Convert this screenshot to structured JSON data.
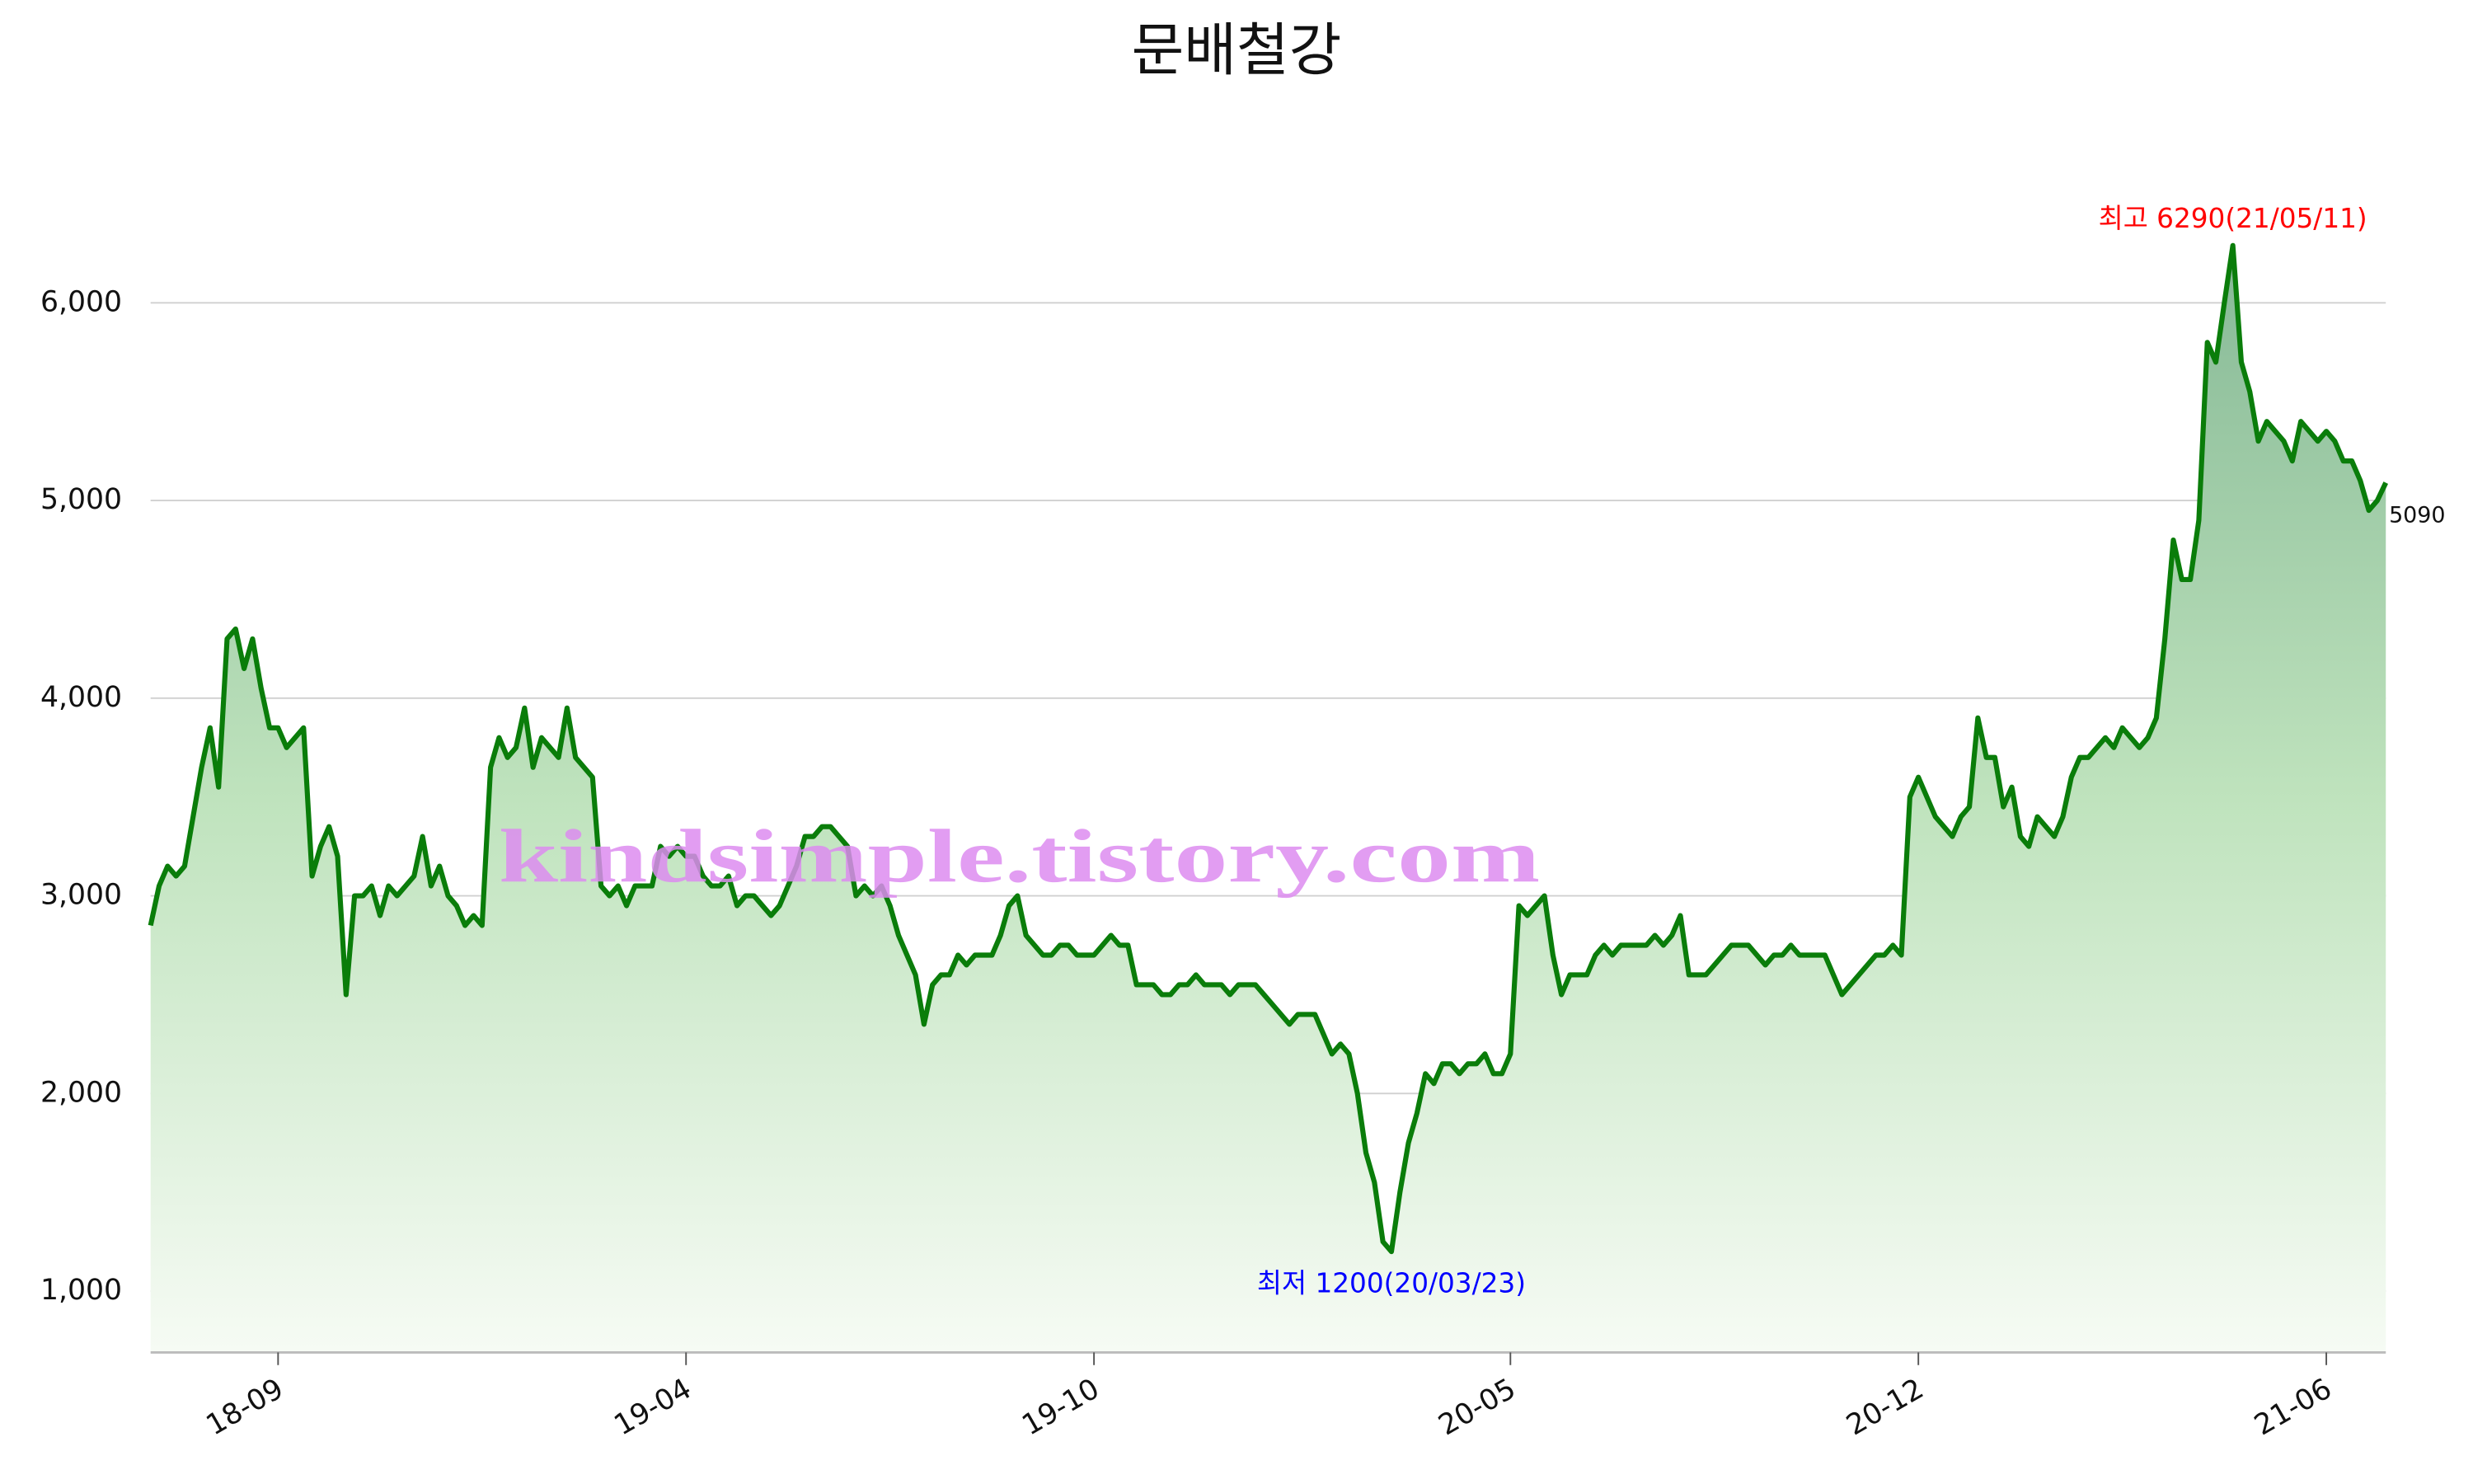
{
  "chart_data": {
    "type": "line",
    "title": "문배철강",
    "watermark": "kindsimple.tistory.com",
    "max_label": "최고 6290(21/05/11)",
    "min_label": "최저 1200(20/03/23)",
    "max_color": "#ff0000",
    "min_color": "#0000ff",
    "grid": true,
    "ylim": [
      690,
      6730
    ],
    "yticks": [
      {
        "value": 1000,
        "label": "1,000"
      },
      {
        "value": 2000,
        "label": "2,000"
      },
      {
        "value": 3000,
        "label": "3,000"
      },
      {
        "value": 4000,
        "label": "4,000"
      },
      {
        "value": 5000,
        "label": "5,000"
      },
      {
        "value": 6000,
        "label": "6,000"
      }
    ],
    "categories": [
      null,
      null,
      null,
      null,
      null,
      null,
      null,
      null,
      null,
      null,
      null,
      null,
      null,
      null,
      null,
      "18-09",
      null,
      null,
      null,
      null,
      null,
      null,
      null,
      null,
      null,
      null,
      null,
      null,
      null,
      null,
      null,
      null,
      null,
      null,
      null,
      null,
      null,
      null,
      null,
      null,
      null,
      null,
      null,
      null,
      null,
      null,
      null,
      null,
      null,
      null,
      null,
      null,
      null,
      null,
      null,
      null,
      null,
      null,
      null,
      null,
      null,
      null,
      null,
      "19-04",
      null,
      null,
      null,
      null,
      null,
      null,
      null,
      null,
      null,
      null,
      null,
      null,
      null,
      null,
      null,
      null,
      null,
      null,
      null,
      null,
      null,
      null,
      null,
      null,
      null,
      null,
      null,
      null,
      null,
      null,
      null,
      null,
      null,
      null,
      null,
      null,
      null,
      null,
      null,
      null,
      null,
      null,
      null,
      null,
      null,
      null,
      null,
      "19-10",
      null,
      null,
      null,
      null,
      null,
      null,
      null,
      null,
      null,
      null,
      null,
      null,
      null,
      null,
      null,
      null,
      null,
      null,
      null,
      null,
      null,
      null,
      null,
      null,
      null,
      null,
      null,
      null,
      null,
      null,
      null,
      null,
      null,
      null,
      null,
      null,
      null,
      null,
      null,
      null,
      null,
      null,
      null,
      null,
      null,
      null,
      null,
      null,
      "20-05",
      null,
      null,
      null,
      null,
      null,
      null,
      null,
      null,
      null,
      null,
      null,
      null,
      null,
      null,
      null,
      null,
      null,
      null,
      null,
      null,
      null,
      null,
      null,
      null,
      null,
      null,
      null,
      null,
      null,
      null,
      null,
      null,
      null,
      null,
      null,
      null,
      null,
      null,
      null,
      null,
      null,
      null,
      null,
      null,
      null,
      null,
      null,
      "20-12",
      null,
      null,
      null,
      null,
      null,
      null,
      null,
      null,
      null,
      null,
      null,
      null,
      null,
      null,
      null,
      null,
      null,
      null,
      null,
      null,
      null,
      null,
      null,
      null,
      null,
      null,
      null,
      null,
      null,
      null,
      null,
      null,
      null,
      null,
      null,
      null,
      null,
      null,
      null,
      null,
      null,
      null,
      null,
      null,
      null,
      null,
      null,
      "21-06",
      null,
      null,
      null,
      null,
      null,
      null,
      null
    ],
    "series": [
      {
        "name": "문배철강",
        "color": "#0a7d0a",
        "values": [
          2850,
          3050,
          3150,
          3100,
          3150,
          3400,
          3650,
          3850,
          3550,
          4300,
          4350,
          4150,
          4300,
          4050,
          3850,
          3850,
          3750,
          3800,
          3850,
          3100,
          3250,
          3350,
          3200,
          2500,
          3000,
          3000,
          3050,
          2900,
          3050,
          3000,
          3050,
          3100,
          3300,
          3050,
          3150,
          3000,
          2950,
          2850,
          2900,
          2850,
          3650,
          3800,
          3700,
          3750,
          3950,
          3650,
          3800,
          3750,
          3700,
          3950,
          3700,
          3650,
          3600,
          3050,
          3000,
          3050,
          2950,
          3050,
          3050,
          3050,
          3250,
          3200,
          3250,
          3200,
          3200,
          3100,
          3050,
          3050,
          3100,
          2950,
          3000,
          3000,
          2950,
          2900,
          2950,
          3050,
          3150,
          3300,
          3300,
          3350,
          3350,
          3300,
          3250,
          3000,
          3050,
          3000,
          3050,
          2950,
          2800,
          2700,
          2600,
          2350,
          2550,
          2600,
          2600,
          2700,
          2650,
          2700,
          2700,
          2700,
          2800,
          2950,
          3000,
          2800,
          2750,
          2700,
          2700,
          2750,
          2750,
          2700,
          2700,
          2700,
          2750,
          2800,
          2750,
          2750,
          2550,
          2550,
          2550,
          2500,
          2500,
          2550,
          2550,
          2600,
          2550,
          2550,
          2550,
          2500,
          2550,
          2550,
          2550,
          2500,
          2450,
          2400,
          2350,
          2400,
          2400,
          2400,
          2300,
          2200,
          2250,
          2200,
          2000,
          1700,
          1550,
          1250,
          1200,
          1500,
          1750,
          1900,
          2100,
          2050,
          2150,
          2150,
          2100,
          2150,
          2150,
          2200,
          2100,
          2100,
          2200,
          2950,
          2900,
          2950,
          3000,
          2700,
          2500,
          2600,
          2600,
          2600,
          2700,
          2750,
          2700,
          2750,
          2750,
          2750,
          2750,
          2800,
          2750,
          2800,
          2900,
          2600,
          2600,
          2600,
          2650,
          2700,
          2750,
          2750,
          2750,
          2700,
          2650,
          2700,
          2700,
          2750,
          2700,
          2700,
          2700,
          2700,
          2600,
          2500,
          2550,
          2600,
          2650,
          2700,
          2700,
          2750,
          2700,
          3500,
          3600,
          3500,
          3400,
          3350,
          3300,
          3400,
          3450,
          3900,
          3700,
          3700,
          3450,
          3550,
          3300,
          3250,
          3400,
          3350,
          3300,
          3400,
          3600,
          3700,
          3700,
          3750,
          3800,
          3750,
          3850,
          3800,
          3750,
          3800,
          3900,
          4300,
          4800,
          4600,
          4600,
          4900,
          5800,
          5700,
          6000,
          6290,
          5700,
          5550,
          5300,
          5400,
          5350,
          5300,
          5200,
          5400,
          5350,
          5300,
          5350,
          5300,
          5200,
          5200,
          5100,
          4950,
          5000,
          5090
        ]
      }
    ]
  }
}
